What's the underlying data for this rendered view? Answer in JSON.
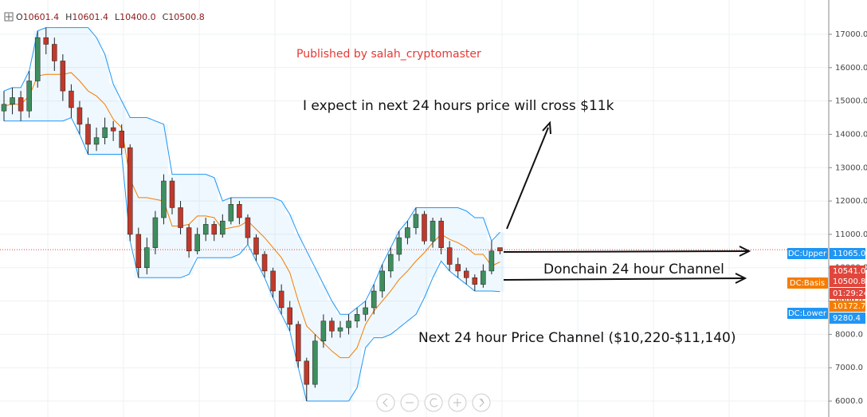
{
  "chart_data": {
    "type": "candlestick",
    "header": [
      {
        "key": "O",
        "text": "10601.4"
      },
      {
        "key": "H",
        "text": "10601.4"
      },
      {
        "key": "L",
        "text": "10400.0"
      },
      {
        "key": "C",
        "text": "10500.8"
      }
    ],
    "annotations": [
      "Published by salah_cryptomaster",
      "I expect in next 24 hours price will cross $11k",
      "Donchain 24 hour Channel",
      "Next 24 hour Price Channel ($10,220-$11,140)"
    ],
    "ylim": [
      5522,
      18028
    ],
    "yticks": [
      {
        "value": 6000,
        "label": "6000.0"
      },
      {
        "value": 7000,
        "label": "7000.0"
      },
      {
        "value": 8000,
        "label": "8000.0"
      },
      {
        "value": 9000,
        "label": "9000.0"
      },
      {
        "value": 10000,
        "label": "10000.0"
      },
      {
        "value": 11000,
        "label": "11000.0"
      },
      {
        "value": 12000,
        "label": "12000.0"
      },
      {
        "value": 13000,
        "label": "13000.0"
      },
      {
        "value": 14000,
        "label": "14000.0"
      },
      {
        "value": 15000,
        "label": "15000.0"
      },
      {
        "value": 16000,
        "label": "16000.0"
      },
      {
        "value": 17000,
        "label": "17000.0"
      }
    ],
    "grid": true,
    "up_color": "#3e8e5e",
    "down_color": "#c0392b",
    "candles": [
      [
        14700,
        15300,
        14400,
        14900
      ],
      [
        14900,
        15400,
        14600,
        15100
      ],
      [
        15100,
        15300,
        14400,
        14700
      ],
      [
        14700,
        15900,
        14500,
        15600
      ],
      [
        15600,
        17100,
        15400,
        16900
      ],
      [
        16900,
        17200,
        16400,
        16700
      ],
      [
        16700,
        16900,
        15900,
        16200
      ],
      [
        16200,
        16400,
        15000,
        15300
      ],
      [
        15300,
        15500,
        14500,
        14800
      ],
      [
        14800,
        15000,
        14000,
        14300
      ],
      [
        14300,
        14500,
        13400,
        13700
      ],
      [
        13700,
        14200,
        13500,
        13900
      ],
      [
        13900,
        14500,
        13700,
        14200
      ],
      [
        14200,
        14400,
        13800,
        14100
      ],
      [
        14100,
        14300,
        13400,
        13600
      ],
      [
        13600,
        13700,
        10800,
        11000
      ],
      [
        11000,
        11200,
        9700,
        10000
      ],
      [
        10000,
        10900,
        9800,
        10600
      ],
      [
        10600,
        11700,
        10400,
        11500
      ],
      [
        11500,
        12800,
        11300,
        12600
      ],
      [
        12600,
        12700,
        11600,
        11800
      ],
      [
        11800,
        12000,
        11000,
        11200
      ],
      [
        11200,
        11300,
        10300,
        10500
      ],
      [
        10500,
        11200,
        10400,
        11000
      ],
      [
        11000,
        11500,
        10800,
        11300
      ],
      [
        11300,
        11400,
        10800,
        11000
      ],
      [
        11000,
        11600,
        10900,
        11400
      ],
      [
        11400,
        12100,
        11300,
        11900
      ],
      [
        11900,
        12000,
        11300,
        11500
      ],
      [
        11500,
        11600,
        10700,
        10900
      ],
      [
        10900,
        11000,
        10200,
        10400
      ],
      [
        10400,
        10500,
        9700,
        9900
      ],
      [
        9900,
        10000,
        9100,
        9300
      ],
      [
        9300,
        9500,
        8600,
        8800
      ],
      [
        8800,
        9000,
        8100,
        8300
      ],
      [
        8300,
        8400,
        7000,
        7200
      ],
      [
        7200,
        7300,
        6000,
        6500
      ],
      [
        6500,
        8000,
        6400,
        7800
      ],
      [
        7800,
        8600,
        7600,
        8400
      ],
      [
        8400,
        8500,
        7900,
        8100
      ],
      [
        8100,
        8400,
        7900,
        8200
      ],
      [
        8200,
        8600,
        8000,
        8400
      ],
      [
        8400,
        8800,
        8200,
        8600
      ],
      [
        8600,
        9000,
        8400,
        8800
      ],
      [
        8800,
        9500,
        8600,
        9300
      ],
      [
        9300,
        10100,
        9100,
        9900
      ],
      [
        9900,
        10600,
        9700,
        10400
      ],
      [
        10400,
        11100,
        10200,
        10900
      ],
      [
        10900,
        11400,
        10700,
        11200
      ],
      [
        11200,
        11800,
        11000,
        11600
      ],
      [
        11600,
        11700,
        10700,
        10800
      ],
      [
        10800,
        11500,
        10600,
        11400
      ],
      [
        11400,
        11500,
        10400,
        10600
      ],
      [
        10600,
        10800,
        9900,
        10100
      ],
      [
        10100,
        10300,
        9700,
        9900
      ],
      [
        9900,
        10000,
        9500,
        9700
      ],
      [
        9700,
        9800,
        9300,
        9500
      ],
      [
        9500,
        10100,
        9400,
        9900
      ],
      [
        9900,
        10800,
        9800,
        10500
      ],
      [
        10601.4,
        10601.4,
        10400,
        10500.8
      ]
    ],
    "series": [
      {
        "name": "DC:Upper",
        "color": "#2196f3",
        "values": [
          15300,
          15400,
          15400,
          15900,
          17100,
          17200,
          17200,
          17200,
          17200,
          17200,
          17200,
          16900,
          16400,
          15500,
          15000,
          14500,
          14500,
          14500,
          14400,
          14300,
          12800,
          12800,
          12800,
          12800,
          12800,
          12700,
          12000,
          12100,
          12100,
          12100,
          12100,
          12100,
          12100,
          12000,
          11600,
          11000,
          10500,
          10000,
          9500,
          9000,
          8600,
          8600,
          8800,
          9000,
          9500,
          10100,
          10600,
          11100,
          11400,
          11800,
          11800,
          11800,
          11800,
          11800,
          11800,
          11700,
          11500,
          11500,
          10800,
          11065
        ]
      },
      {
        "name": "DC:Basis",
        "color": "#f57c00",
        "values": [
          14850,
          14900,
          14900,
          15150,
          15750,
          15800,
          15800,
          15800,
          15850,
          15600,
          15300,
          15150,
          14900,
          14450,
          14200,
          12650,
          12100,
          12100,
          12050,
          12000,
          11250,
          11250,
          11300,
          11550,
          11550,
          11500,
          11150,
          11200,
          11250,
          11400,
          11150,
          10900,
          10600,
          10300,
          9850,
          9000,
          8250,
          8000,
          7750,
          7500,
          7300,
          7300,
          7600,
          8300,
          8700,
          9000,
          9300,
          9650,
          9900,
          10200,
          10450,
          10750,
          11000,
          10850,
          10750,
          10600,
          10400,
          10400,
          10050,
          10172.7
        ]
      },
      {
        "name": "DC:Lower",
        "color": "#2196f3",
        "values": [
          14400,
          14400,
          14400,
          14400,
          14400,
          14400,
          14400,
          14400,
          14500,
          14000,
          13400,
          13400,
          13400,
          13400,
          13400,
          10800,
          9700,
          9700,
          9700,
          9700,
          9700,
          9700,
          9800,
          10300,
          10300,
          10300,
          10300,
          10300,
          10400,
          10700,
          10200,
          9700,
          9100,
          8600,
          8100,
          7000,
          6000,
          6000,
          6000,
          6000,
          6000,
          6000,
          6400,
          7600,
          7900,
          7900,
          8000,
          8200,
          8400,
          8600,
          9100,
          9700,
          10200,
          9900,
          9700,
          9500,
          9300,
          9300,
          9300,
          9280.4
        ]
      }
    ],
    "price_line": {
      "value": 10541,
      "color": "#e0463c"
    },
    "price_tags": [
      {
        "value": 11065,
        "label": "11065.0",
        "color": "#2196f3"
      },
      {
        "value": 10541,
        "label": "10541.0",
        "color": "#e0463c"
      },
      {
        "value": 10500.8,
        "label": "10500.8",
        "color": "#e0463c"
      },
      {
        "label": "01:29:24",
        "color": "#e0463c"
      },
      {
        "value": 10172.7,
        "label": "10172.7",
        "color": "#f57c00"
      },
      {
        "value": 9280.4,
        "label": "9280.4",
        "color": "#2196f3"
      }
    ]
  }
}
